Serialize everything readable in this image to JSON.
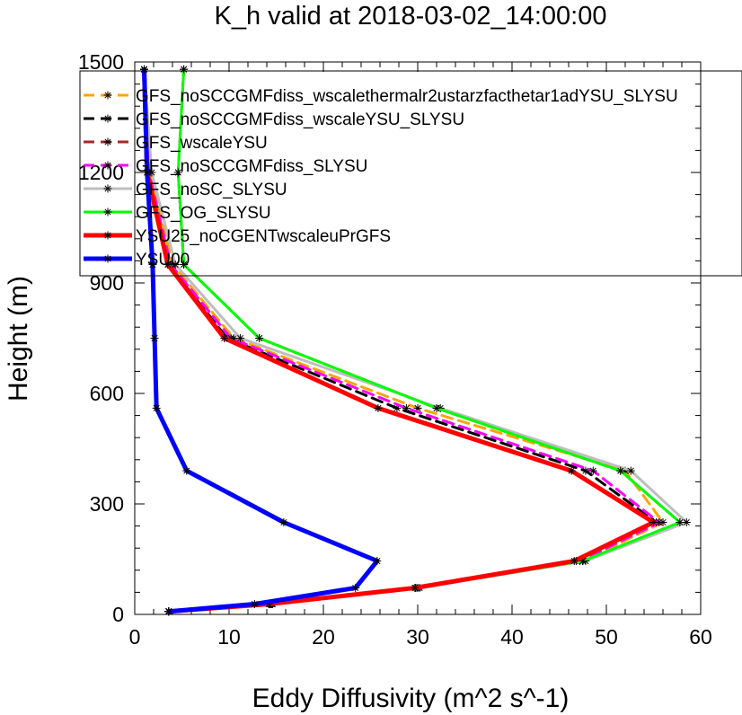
{
  "chart_data": {
    "type": "line",
    "title": "K_h valid at 2018-03-02_14:00:00",
    "xlabel": "Eddy Diffusivity (m^2 s^-1)",
    "ylabel": "Height (m)",
    "xlim": [
      0,
      60
    ],
    "ylim": [
      0,
      1500
    ],
    "xticks": [
      "0",
      "10",
      "20",
      "30",
      "40",
      "50",
      "60"
    ],
    "yticks": [
      "0",
      "300",
      "600",
      "900",
      "1200",
      "1500"
    ],
    "legend_position": "top-right",
    "grid": false,
    "heights": [
      8,
      28,
      72,
      145,
      250,
      390,
      560,
      750,
      950,
      1200,
      1480
    ],
    "series": [
      {
        "name": "GFS_noSCCGMFdiss_wscalethermalr2ustarzfacthetar1adYSU_SLYSU",
        "color": "#ffa500",
        "dash": "dash",
        "x": [
          3.6,
          14.5,
          30.0,
          47.5,
          56.0,
          52.0,
          30.0,
          10.5,
          4.0,
          1.6,
          1.0
        ]
      },
      {
        "name": "GFS_noSCCGMFdiss_wscaleYSU_SLYSU",
        "color": "#000000",
        "dash": "dash",
        "x": [
          3.6,
          14.3,
          29.8,
          46.8,
          55.3,
          47.8,
          27.8,
          9.8,
          3.6,
          1.4,
          1.0
        ]
      },
      {
        "name": "GFS_wscaleYSU",
        "color": "#a52a2a",
        "dash": "dash",
        "x": [
          3.6,
          14.6,
          30.0,
          47.5,
          57.8,
          51.5,
          32.0,
          13.2,
          5.2,
          4.6,
          5.2
        ]
      },
      {
        "name": "GFS_noSCCGMFdiss_SLYSU",
        "color": "#ff00ff",
        "dash": "dash",
        "x": [
          3.6,
          14.4,
          29.8,
          47.2,
          55.6,
          48.6,
          28.8,
          10.2,
          3.8,
          1.5,
          1.0
        ]
      },
      {
        "name": "GFS_noSC_SLYSU",
        "color": "#bebebe",
        "dash": "solid",
        "x": [
          3.6,
          14.6,
          30.2,
          47.8,
          58.5,
          52.6,
          32.4,
          11.2,
          4.3,
          1.8,
          1.0
        ]
      },
      {
        "name": "GFS_OG_SLYSU",
        "color": "#00ff00",
        "dash": "solid",
        "x": [
          3.6,
          14.6,
          30.0,
          47.5,
          57.8,
          51.5,
          32.0,
          13.2,
          5.2,
          4.6,
          5.2
        ]
      },
      {
        "name": "YSU25_noCGENTwscaleuPrGFS",
        "color": "#ff0000",
        "dash": "solid",
        "x": [
          3.6,
          14.2,
          29.7,
          46.6,
          55.0,
          46.3,
          25.8,
          9.5,
          3.5,
          1.3,
          1.0
        ]
      },
      {
        "name": "YSU00",
        "color": "#0000ff",
        "dash": "solid",
        "x": [
          3.6,
          12.7,
          23.4,
          25.7,
          15.8,
          5.5,
          2.3,
          2.1,
          1.9,
          1.3,
          1.0
        ]
      }
    ]
  }
}
